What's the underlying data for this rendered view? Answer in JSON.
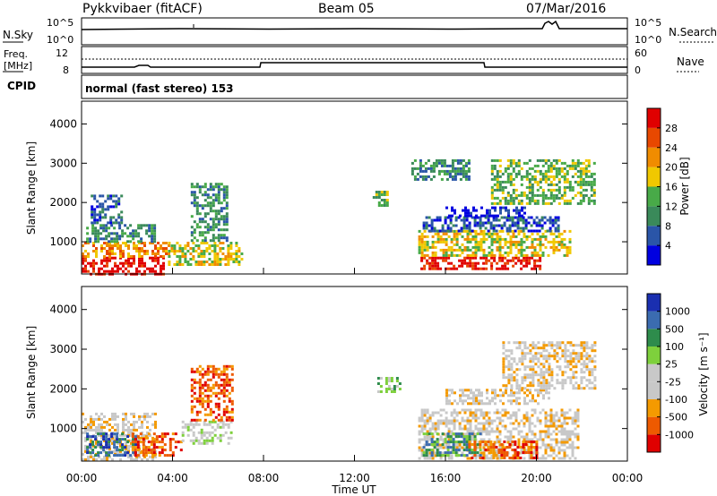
{
  "header": {
    "station": "Pykkvibaer (fitACF)",
    "beam": "Beam 05",
    "date": "07/Mar/2016"
  },
  "panels": {
    "nsky_label": "N.Sky",
    "nsky_ticks": [
      "10^5",
      "10^0"
    ],
    "nsearch_label": "N.Search",
    "nsearch_ticks": [
      "10^5",
      "10^0"
    ],
    "freq_label_line1": "Freq.",
    "freq_label_line2": "[MHz]",
    "freq_ticks": [
      "12",
      "8"
    ],
    "nave_label": "Nave",
    "nave_ticks": [
      "60",
      "0"
    ],
    "cpid_label": "CPID",
    "cpid_value": "normal (fast stereo) 153"
  },
  "colors": {
    "power": [
      "#0000e0",
      "#2a55a8",
      "#3a8a5a",
      "#48aa48",
      "#f0c800",
      "#f08c00",
      "#e84800",
      "#e00000"
    ],
    "velocity": [
      "#e00000",
      "#ee5a00",
      "#f49a00",
      "#c8c8c8",
      "#c8c8c8",
      "#7ed03c",
      "#2e8c4c",
      "#3b6cb0",
      "#1a2fb0"
    ]
  },
  "chart_data": [
    {
      "type": "heatmap",
      "panel": "power",
      "ylabel": "Slant Range [km]",
      "ylim": [
        180,
        4580
      ],
      "yticks": [
        "4000",
        "3000",
        "2000",
        "1000"
      ],
      "xlim_hours": [
        0,
        24
      ],
      "colorbar_label": "Power [dB]",
      "colorbar_ticks": [
        "28",
        "24",
        "20",
        "16",
        "12",
        "8",
        "4"
      ],
      "regions": [
        {
          "t0": 0.0,
          "t1": 3.6,
          "r0": 200,
          "r1": 620,
          "level": 7
        },
        {
          "t0": 0.0,
          "t1": 3.8,
          "r0": 620,
          "r1": 1000,
          "level": 5
        },
        {
          "t0": 0.2,
          "t1": 3.2,
          "r0": 1000,
          "r1": 1450,
          "level": 2
        },
        {
          "t0": 0.4,
          "t1": 1.8,
          "r0": 1450,
          "r1": 2200,
          "level": 1
        },
        {
          "t0": 3.8,
          "t1": 7.0,
          "r0": 400,
          "r1": 1000,
          "level": 4
        },
        {
          "t0": 4.8,
          "t1": 6.4,
          "r0": 1000,
          "r1": 2500,
          "level": 2
        },
        {
          "t0": 12.8,
          "t1": 13.5,
          "r0": 1950,
          "r1": 2300,
          "level": 3
        },
        {
          "t0": 14.9,
          "t1": 20.2,
          "r0": 280,
          "r1": 620,
          "level": 7
        },
        {
          "t0": 14.8,
          "t1": 21.5,
          "r0": 620,
          "r1": 1300,
          "level": 4
        },
        {
          "t0": 15.0,
          "t1": 21.0,
          "r0": 1300,
          "r1": 1650,
          "level": 1
        },
        {
          "t0": 16.0,
          "t1": 19.5,
          "r0": 1650,
          "r1": 1900,
          "level": 0
        },
        {
          "t0": 18.0,
          "t1": 22.5,
          "r0": 2000,
          "r1": 3100,
          "level": 3
        },
        {
          "t0": 14.5,
          "t1": 17.0,
          "r0": 2600,
          "r1": 3100,
          "level": 2
        }
      ]
    },
    {
      "type": "heatmap",
      "panel": "velocity",
      "ylabel": "Slant Range [km]",
      "xlabel": "Time UT",
      "ylim": [
        180,
        4580
      ],
      "yticks": [
        "4000",
        "3000",
        "2000",
        "1000"
      ],
      "xlim_hours": [
        0,
        24
      ],
      "xticks": [
        "00:00",
        "04:00",
        "08:00",
        "12:00",
        "16:00",
        "20:00",
        "00:00"
      ],
      "colorbar_label": "Velocity [m s⁻¹]",
      "colorbar_ticks": [
        "1000",
        "500",
        "100",
        "25",
        "-25",
        "-100",
        "-500",
        "-1000"
      ],
      "regions": [
        {
          "t0": 0.0,
          "t1": 3.2,
          "r0": 200,
          "r1": 1400,
          "level": 3
        },
        {
          "t0": 0.2,
          "t1": 2.4,
          "r0": 300,
          "r1": 900,
          "level": 7
        },
        {
          "t0": 2.2,
          "t1": 4.4,
          "r0": 300,
          "r1": 900,
          "level": 1
        },
        {
          "t0": 4.4,
          "t1": 6.6,
          "r0": 600,
          "r1": 1200,
          "level": 4
        },
        {
          "t0": 4.8,
          "t1": 6.6,
          "r0": 1200,
          "r1": 2600,
          "level": 1
        },
        {
          "t0": 14.8,
          "t1": 21.8,
          "r0": 220,
          "r1": 1500,
          "level": 3
        },
        {
          "t0": 15.0,
          "t1": 17.5,
          "r0": 300,
          "r1": 900,
          "level": 6
        },
        {
          "t0": 17.0,
          "t1": 20.0,
          "r0": 250,
          "r1": 700,
          "level": 1
        },
        {
          "t0": 16.0,
          "t1": 20.5,
          "r0": 1600,
          "r1": 2000,
          "level": 3
        },
        {
          "t0": 18.5,
          "t1": 22.6,
          "r0": 2000,
          "r1": 3200,
          "level": 3
        },
        {
          "t0": 13.0,
          "t1": 14.0,
          "r0": 1900,
          "r1": 2300,
          "level": 5
        }
      ]
    }
  ]
}
